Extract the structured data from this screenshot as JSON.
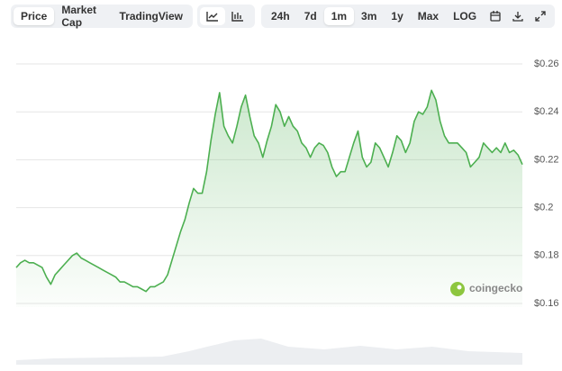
{
  "toolbar": {
    "tabs": [
      "Price",
      "Market Cap",
      "TradingView"
    ],
    "active_tab": 0,
    "ranges": [
      "24h",
      "7d",
      "1m",
      "3m",
      "1y",
      "Max",
      "LOG"
    ],
    "active_range": 2
  },
  "watermark": "coingecko",
  "chart_data": {
    "type": "area",
    "color": "#4caf50",
    "values": [
      0.175,
      0.177,
      0.178,
      0.177,
      0.177,
      0.176,
      0.175,
      0.171,
      0.168,
      0.172,
      0.174,
      0.176,
      0.178,
      0.18,
      0.181,
      0.179,
      0.178,
      0.177,
      0.176,
      0.175,
      0.174,
      0.173,
      0.172,
      0.171,
      0.169,
      0.169,
      0.168,
      0.167,
      0.167,
      0.166,
      0.165,
      0.167,
      0.167,
      0.168,
      0.169,
      0.172,
      0.178,
      0.184,
      0.19,
      0.195,
      0.202,
      0.208,
      0.206,
      0.206,
      0.215,
      0.228,
      0.239,
      0.248,
      0.234,
      0.23,
      0.227,
      0.234,
      0.242,
      0.247,
      0.238,
      0.23,
      0.227,
      0.221,
      0.228,
      0.234,
      0.243,
      0.24,
      0.234,
      0.238,
      0.234,
      0.232,
      0.227,
      0.225,
      0.221,
      0.225,
      0.227,
      0.226,
      0.223,
      0.217,
      0.213,
      0.215,
      0.215,
      0.221,
      0.227,
      0.232,
      0.221,
      0.217,
      0.219,
      0.227,
      0.225,
      0.221,
      0.217,
      0.223,
      0.23,
      0.228,
      0.223,
      0.227,
      0.236,
      0.24,
      0.239,
      0.242,
      0.249,
      0.245,
      0.236,
      0.23,
      0.227,
      0.227,
      0.227,
      0.225,
      0.223,
      0.217,
      0.219,
      0.221,
      0.227,
      0.225,
      0.223,
      0.225,
      0.223,
      0.227,
      0.223,
      0.224,
      0.222,
      0.218
    ],
    "ylim": [
      0.16,
      0.26
    ],
    "yticks": [
      {
        "value": 0.16,
        "label": "$0.16"
      },
      {
        "value": 0.18,
        "label": "$0.18"
      },
      {
        "value": 0.2,
        "label": "$0.2"
      },
      {
        "value": 0.22,
        "label": "$0.22"
      },
      {
        "value": 0.24,
        "label": "$0.24"
      },
      {
        "value": 0.26,
        "label": "$0.26"
      }
    ],
    "grid": true
  }
}
